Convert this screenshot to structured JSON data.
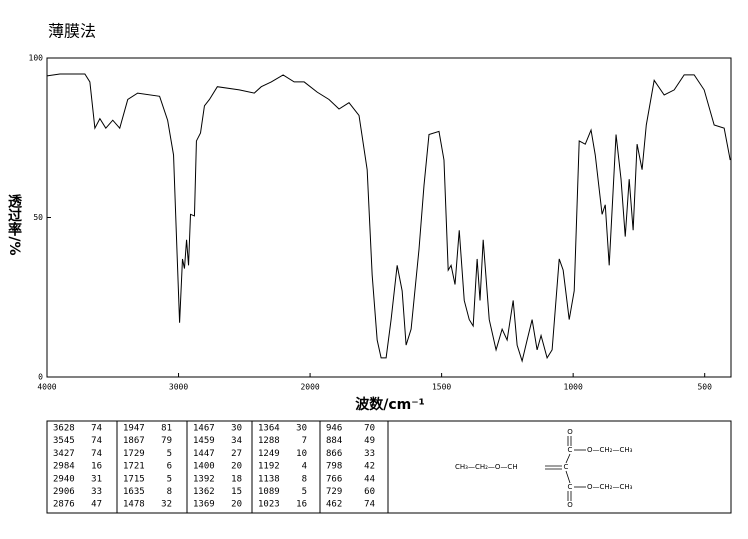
{
  "chart_data": {
    "type": "line",
    "title": "薄膜法",
    "x_label": "波数/cm⁻¹",
    "y_label": "透过率/%",
    "color": "#000000",
    "x": [
      4000,
      3902,
      3712,
      3674,
      3636,
      3598,
      3553,
      3500,
      3447,
      3386,
      3311,
      3144,
      3083,
      3038,
      3015,
      2992,
      2970,
      2955,
      2939,
      2924,
      2909,
      2879,
      2864,
      2833,
      2803,
      2765,
      2705,
      2538,
      2424,
      2371,
      2295,
      2205,
      2121,
      2045,
      1973,
      1928,
      1890,
      1852,
      1814,
      1783,
      1764,
      1745,
      1730,
      1711,
      1692,
      1669,
      1650,
      1635,
      1616,
      1586,
      1567,
      1548,
      1510,
      1491,
      1475,
      1464,
      1449,
      1433,
      1414,
      1395,
      1380,
      1365,
      1354,
      1342,
      1319,
      1293,
      1270,
      1251,
      1228,
      1213,
      1194,
      1175,
      1156,
      1137,
      1122,
      1099,
      1080,
      1053,
      1038,
      1015,
      996,
      977,
      954,
      932,
      916,
      890,
      878,
      863,
      848,
      837,
      818,
      802,
      787,
      772,
      757,
      738,
      722,
      692,
      654,
      616,
      578,
      540,
      502,
      464,
      426,
      403
    ],
    "values": [
      94.4,
      95,
      95,
      92.5,
      78,
      81,
      78,
      80.5,
      78,
      87,
      89,
      88,
      80.5,
      69.6,
      43,
      17,
      37,
      34,
      43,
      35,
      51,
      50.5,
      74,
      76.5,
      85,
      87,
      91,
      90,
      89,
      91,
      92.5,
      94.7,
      92.5,
      92.5,
      89.3,
      87,
      84,
      86,
      82,
      65,
      32,
      11.6,
      6,
      6,
      18,
      35,
      27,
      10,
      15,
      40,
      60,
      76,
      77,
      68,
      33.5,
      35,
      29,
      46,
      24,
      18,
      16,
      37,
      24,
      43,
      18,
      8.5,
      15,
      11.6,
      24,
      10,
      5,
      11.6,
      18,
      8.5,
      13,
      6,
      8.5,
      37,
      33.5,
      18,
      27,
      74,
      73,
      77.4,
      69.6,
      51,
      54,
      35,
      58.6,
      76,
      62,
      44,
      62,
      46,
      73,
      65,
      79,
      93,
      88.4,
      90,
      94.7,
      94.7,
      90,
      79,
      78,
      68
    ],
    "xlim": [
      4000,
      400
    ],
    "xticks": [
      4000,
      3000,
      2000,
      1500,
      1000,
      500
    ],
    "ylim": [
      0,
      100
    ],
    "yticks": [
      0,
      50,
      100
    ]
  },
  "peak_table": {
    "columns": [
      [
        [
          3628,
          74
        ],
        [
          3545,
          74
        ],
        [
          3427,
          74
        ],
        [
          2984,
          16
        ],
        [
          2940,
          31
        ],
        [
          2906,
          33
        ],
        [
          2876,
          47
        ]
      ],
      [
        [
          1947,
          81
        ],
        [
          1867,
          79
        ],
        [
          1729,
          5
        ],
        [
          1721,
          6
        ],
        [
          1715,
          5
        ],
        [
          1635,
          8
        ],
        [
          1478,
          32
        ]
      ],
      [
        [
          1467,
          30
        ],
        [
          1459,
          34
        ],
        [
          1447,
          27
        ],
        [
          1400,
          20
        ],
        [
          1392,
          18
        ],
        [
          1362,
          15
        ],
        [
          1369,
          20
        ]
      ],
      [
        [
          1364,
          30
        ],
        [
          1288,
          7
        ],
        [
          1249,
          10
        ],
        [
          1192,
          4
        ],
        [
          1138,
          8
        ],
        [
          1089,
          5
        ],
        [
          1023,
          16
        ]
      ],
      [
        [
          946,
          70
        ],
        [
          884,
          49
        ],
        [
          866,
          33
        ],
        [
          798,
          42
        ],
        [
          766,
          44
        ],
        [
          729,
          60
        ],
        [
          462,
          74
        ]
      ]
    ]
  },
  "structure": {
    "labels": [
      "O",
      "C",
      "O—CH₂—CH₃",
      "CH₃—CH₂—O—CH",
      "C",
      "C",
      "O—CH₂—CH₃",
      "O"
    ]
  }
}
